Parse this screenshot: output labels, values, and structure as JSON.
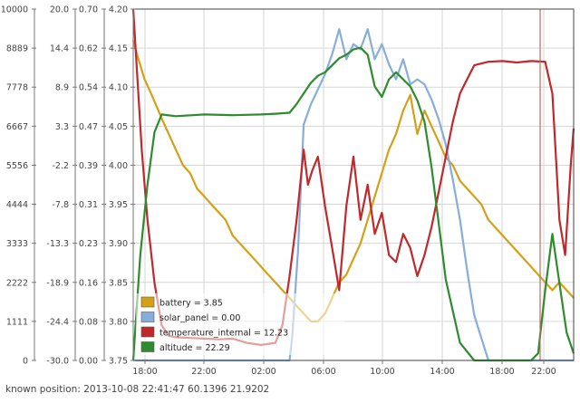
{
  "chart_data": {
    "type": "line",
    "x_ticks": [
      "18:00",
      "22:00",
      "02:00",
      "06:00",
      "10:00",
      "14:00",
      "18:00",
      "22:00"
    ],
    "x_range": [
      "16:30",
      "23:30 (+1 day)"
    ],
    "grid": true,
    "legend_position": "bottom-left",
    "y_axes": [
      {
        "ticks": [
          "0",
          "1111",
          "2222",
          "3333",
          "4444",
          "5556",
          "6667",
          "7778",
          "8889",
          "10000"
        ],
        "range": [
          0,
          10000
        ]
      },
      {
        "ticks": [
          "-30.0",
          "-24.4",
          "-18.9",
          "-13.3",
          "-7.8",
          "-2.2",
          "3.3",
          "8.9",
          "14.4",
          "20.0"
        ],
        "range": [
          -30,
          20
        ]
      },
      {
        "ticks": [
          "0.00",
          "0.08",
          "0.16",
          "0.23",
          "0.31",
          "0.39",
          "0.47",
          "0.54",
          "0.62",
          "0.70"
        ],
        "range": [
          0,
          0.7
        ]
      },
      {
        "ticks": [
          "3.75",
          "3.80",
          "3.85",
          "3.90",
          "3.95",
          "4.00",
          "4.05",
          "4.10",
          "4.15",
          "4.20"
        ],
        "range": [
          3.75,
          4.2
        ]
      }
    ],
    "series": [
      {
        "name": "battery = 3.85",
        "color": "#d4a017",
        "axis": 3,
        "x_hours": [
          0,
          0.3,
          0.8,
          1.3,
          2,
          2.5,
          3,
          3.5,
          4,
          4.5,
          5,
          5.5,
          6,
          6.5,
          7,
          7.5,
          8,
          8.5,
          9,
          9.5,
          10,
          10.5,
          11,
          11.5,
          12,
          12.5,
          13,
          13.5,
          14,
          14.5,
          15,
          15.5,
          16,
          16.5,
          17,
          17.5,
          18,
          18.5,
          19,
          19.5,
          20,
          20.5,
          21,
          21.5,
          22,
          22.5,
          23,
          23.5,
          24,
          24.5,
          25,
          25.5,
          26,
          26.5,
          27,
          27.5,
          28,
          28.5,
          29,
          29.5,
          30,
          30.5,
          31
        ],
        "y": [
          4.16,
          4.14,
          4.11,
          4.09,
          4.06,
          4.04,
          4.02,
          4.0,
          3.99,
          3.97,
          3.96,
          3.95,
          3.94,
          3.93,
          3.91,
          3.9,
          3.89,
          3.88,
          3.87,
          3.86,
          3.85,
          3.84,
          3.83,
          3.82,
          3.81,
          3.8,
          3.8,
          3.81,
          3.83,
          3.85,
          3.86,
          3.88,
          3.9,
          3.93,
          3.96,
          3.99,
          4.02,
          4.04,
          4.07,
          4.09,
          4.04,
          4.07,
          4.05,
          4.03,
          4.01,
          4.0,
          3.98,
          3.97,
          3.96,
          3.95,
          3.93,
          3.92,
          3.91,
          3.9,
          3.89,
          3.88,
          3.87,
          3.86,
          3.85,
          3.84,
          3.85,
          3.84,
          3.83
        ]
      },
      {
        "name": "solar_panel = 0.00",
        "color": "#87aedb",
        "axis": 2,
        "x_hours": [
          0,
          8,
          11.0,
          11.2,
          11.6,
          12,
          12.5,
          13,
          13.5,
          14,
          14.5,
          15,
          15.5,
          16,
          16.5,
          17,
          17.5,
          18,
          18.5,
          19,
          19.5,
          20,
          20.5,
          21,
          21.5,
          22,
          22.5,
          23,
          23.5,
          24,
          25,
          28,
          31
        ],
        "y": [
          0,
          0,
          0,
          0.05,
          0.22,
          0.47,
          0.51,
          0.54,
          0.57,
          0.61,
          0.66,
          0.6,
          0.63,
          0.62,
          0.66,
          0.6,
          0.63,
          0.59,
          0.56,
          0.6,
          0.55,
          0.56,
          0.55,
          0.52,
          0.48,
          0.43,
          0.36,
          0.28,
          0.18,
          0.09,
          0.0,
          0.0,
          0.0
        ]
      },
      {
        "name": "temperature_internal = 12.23",
        "color": "#c0282c",
        "axis": 1,
        "x_hours": [
          0,
          0.3,
          0.6,
          1.0,
          1.5,
          2.0,
          2.5,
          3,
          4,
          5,
          6,
          7,
          8,
          9,
          10,
          10.5,
          11,
          11.5,
          12,
          12.3,
          12.6,
          13,
          13.5,
          14,
          14.5,
          15,
          15.5,
          16,
          16.5,
          17,
          17.5,
          18,
          18.5,
          19,
          19.5,
          20,
          20.5,
          21,
          21.5,
          22,
          22.5,
          23,
          23.5,
          24,
          25,
          26,
          27,
          28,
          29,
          29.5,
          30,
          30.4,
          30.8,
          31
        ],
        "y": [
          20,
          10,
          0,
          -10,
          -19,
          -25,
          -26.5,
          -26.7,
          -26.8,
          -26.9,
          -27,
          -26.9,
          -27.5,
          -27.8,
          -27.5,
          -25,
          -18,
          -10,
          0,
          -5,
          -3,
          -1,
          -8,
          -14,
          -20,
          -8,
          -1,
          -10,
          -5,
          -12,
          -9,
          -15,
          -16,
          -12,
          -14,
          -18,
          -15,
          -11,
          -6,
          -1,
          4,
          8,
          10,
          12,
          12.5,
          12.6,
          12.4,
          12.6,
          12.5,
          8,
          -10,
          -15,
          -2,
          3
        ]
      },
      {
        "name": "altitude = 22.29",
        "color": "#2e8b2e",
        "axis": 0,
        "x_hours": [
          0,
          0.5,
          1.0,
          1.5,
          2.0,
          3,
          5,
          7,
          9,
          10,
          11,
          11.5,
          12,
          12.5,
          13,
          13.5,
          14,
          14.5,
          15,
          15.5,
          16,
          16.5,
          17,
          17.5,
          18,
          18.5,
          19,
          19.5,
          20,
          20.5,
          21,
          21.5,
          22,
          23,
          24,
          25,
          26,
          27,
          28,
          28.5,
          29,
          29.5,
          30,
          30.5,
          31
        ],
        "y": [
          0,
          3000,
          5000,
          6500,
          7000,
          6950,
          7000,
          6980,
          7000,
          7020,
          7050,
          7300,
          7600,
          7900,
          8100,
          8200,
          8400,
          8600,
          8700,
          8850,
          8900,
          8700,
          7800,
          7500,
          8000,
          8200,
          8000,
          7800,
          7400,
          6800,
          5500,
          3900,
          2300,
          500,
          0,
          0,
          0,
          0,
          0,
          200,
          2000,
          3600,
          2200,
          800,
          200
        ]
      }
    ]
  },
  "footer": {
    "known_position": "known position: 2013-10-08 22:41:47  60.1396 21.9202"
  },
  "colors": {
    "grid": "#d6d6d6",
    "marker_line": "#c46a5a",
    "plot_border": "#444444"
  }
}
